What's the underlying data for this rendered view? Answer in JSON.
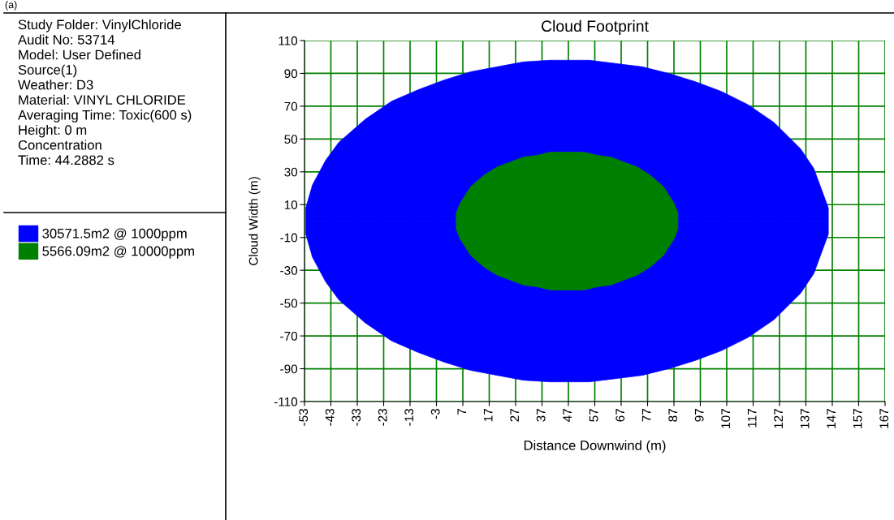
{
  "chart_data": {
    "type": "area",
    "title": "Cloud Footprint",
    "xlabel": "Distance Downwind (m)",
    "ylabel": "Cloud Width (m)",
    "annotations": [
      "(a)",
      "Study Folder: VinylChloride\nAudit No: 53714\nModel: User Defined\nSource(1)\nWeather: D3\nMaterial: VINYL CHLORIDE\nAveraging Time: Toxic(600 s)\nHeight: 0 m\nConcentration\nTime: 44.2882 s"
    ],
    "series": [
      {
        "name": "30571.5m2 @ 1000ppm",
        "color": "#0000ff",
        "x": [
          -52.5,
          -50,
          -45,
          -40,
          -30,
          -20,
          -10,
          0,
          10,
          20,
          30,
          40,
          46.5,
          55,
          65,
          75,
          85,
          95,
          105,
          115,
          125,
          135,
          140,
          145.5
        ],
        "values": [
          8,
          22,
          37,
          48,
          62,
          73,
          80,
          86,
          91,
          94,
          97,
          98,
          98,
          98,
          96,
          94,
          90,
          85,
          79,
          71,
          60,
          44,
          32,
          8
        ]
      },
      {
        "color": "#0000ff",
        "x": [
          -52.5,
          -50,
          -45,
          -40,
          -30,
          -20,
          -10,
          0,
          10,
          20,
          30,
          40,
          46.5,
          55,
          65,
          75,
          85,
          95,
          105,
          115,
          125,
          135,
          140,
          145.5
        ],
        "values": [
          -8,
          -22,
          -37,
          -48,
          -62,
          -73,
          -80,
          -86,
          -91,
          -94,
          -97,
          -98,
          -98,
          -98,
          -96,
          -94,
          -90,
          -85,
          -79,
          -71,
          -60,
          -44,
          -32,
          -8
        ]
      },
      {
        "name": "5566.09m2 @ 10000ppm",
        "color": "#008000",
        "x": [
          4.5,
          6,
          10,
          15,
          20,
          25,
          30,
          35,
          40,
          46.5,
          53,
          58,
          63,
          68,
          73,
          78,
          83,
          87,
          88.5
        ],
        "values": [
          5,
          11,
          21,
          28,
          33,
          36,
          39,
          40,
          42,
          42,
          42,
          40,
          39,
          36,
          33,
          28,
          21,
          11,
          5
        ]
      },
      {
        "color": "#008000",
        "x": [
          4.5,
          6,
          10,
          15,
          20,
          25,
          30,
          35,
          40,
          46.5,
          53,
          58,
          63,
          68,
          73,
          78,
          83,
          87,
          88.5
        ],
        "values": [
          -5,
          -11,
          -21,
          -28,
          -33,
          -36,
          -39,
          -40,
          -42,
          -42,
          -42,
          -40,
          -39,
          -36,
          -33,
          -28,
          -21,
          -11,
          -5
        ]
      }
    ],
    "xlim": [
      -53,
      167
    ],
    "xticks": [
      -53,
      -43,
      -33,
      -23,
      -13,
      -3,
      7,
      17,
      27,
      37,
      47,
      57,
      67,
      77,
      87,
      97,
      107,
      117,
      127,
      137,
      147,
      157,
      167
    ],
    "ylim": [
      -110,
      110
    ],
    "yticks": [
      -110,
      -90,
      -70,
      -50,
      -30,
      -10,
      10,
      30,
      50,
      70,
      90,
      110
    ],
    "grid": true,
    "legend": "left"
  }
}
